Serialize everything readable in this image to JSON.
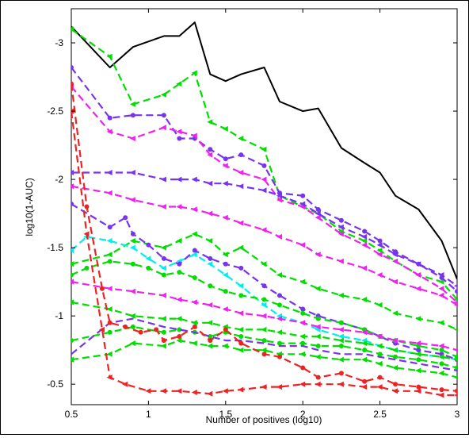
{
  "chart_data": {
    "type": "line",
    "title": "",
    "xlabel": "Number of positives (log10)",
    "ylabel": "log10(1-AUC)",
    "xlim": [
      0.5,
      3
    ],
    "ylim": [
      -3.25,
      -0.35
    ],
    "y_reversed": true,
    "x_ticks": [
      0.5,
      1,
      1.5,
      2,
      2.5,
      3
    ],
    "x_tick_labels": [
      "0.5",
      "1",
      "1.5",
      "2",
      "2.5",
      "3"
    ],
    "y_ticks": [
      -3,
      -2.5,
      -2,
      -1.5,
      -1,
      -0.5
    ],
    "y_tick_labels": [
      "-3",
      "-2.5",
      "-2",
      "-1.5",
      "-1",
      "-0.5"
    ],
    "grid": false,
    "legend": "none",
    "series": [
      {
        "color": "#000000",
        "style": "solid",
        "marker": "none",
        "x": [
          0.5,
          0.75,
          0.9,
          1.1,
          1.2,
          1.3,
          1.4,
          1.5,
          1.6,
          1.75,
          1.85,
          2.0,
          2.1,
          2.25,
          2.4,
          2.5,
          2.6,
          2.75,
          2.9,
          3.0
        ],
        "y": [
          -3.12,
          -2.82,
          -2.97,
          -3.05,
          -3.05,
          -3.15,
          -2.77,
          -2.72,
          -2.77,
          -2.82,
          -2.57,
          -2.5,
          -2.52,
          -2.23,
          -2.12,
          -2.05,
          -1.88,
          -1.78,
          -1.55,
          -1.27
        ]
      },
      {
        "color": "#00dd00",
        "style": "dashed",
        "marker": "triangle",
        "x": [
          0.5,
          0.75,
          0.9,
          1.1,
          1.2,
          1.3,
          1.4,
          1.5,
          1.6,
          1.75,
          1.85,
          2.0,
          2.1,
          2.25,
          2.4,
          2.5,
          2.6,
          2.75,
          2.9,
          3.0
        ],
        "y": [
          -3.1,
          -2.9,
          -2.55,
          -2.62,
          -2.7,
          -2.78,
          -2.42,
          -2.37,
          -2.3,
          -2.22,
          -1.88,
          -1.8,
          -1.75,
          -1.62,
          -1.55,
          -1.48,
          -1.4,
          -1.3,
          -1.25,
          -1.12
        ]
      },
      {
        "color": "#7733ee",
        "style": "dashed",
        "marker": "circle",
        "x": [
          0.5,
          0.75,
          0.9,
          1.1,
          1.2,
          1.3,
          1.4,
          1.5,
          1.6,
          1.75,
          1.85,
          2.0,
          2.1,
          2.25,
          2.4,
          2.5,
          2.6,
          2.75,
          2.9,
          3.0
        ],
        "y": [
          -2.82,
          -2.45,
          -2.47,
          -2.47,
          -2.3,
          -2.3,
          -2.22,
          -2.15,
          -2.18,
          -2.1,
          -1.9,
          -1.88,
          -1.78,
          -1.7,
          -1.62,
          -1.55,
          -1.47,
          -1.38,
          -1.28,
          -1.18
        ]
      },
      {
        "color": "#ee22ee",
        "style": "dashed",
        "marker": "triangle",
        "x": [
          0.5,
          0.75,
          0.9,
          1.1,
          1.2,
          1.3,
          1.4,
          1.5,
          1.6,
          1.75,
          1.85,
          2.0,
          2.1,
          2.25,
          2.4,
          2.5,
          2.6,
          2.75,
          2.9,
          3.0
        ],
        "y": [
          -2.68,
          -2.35,
          -2.3,
          -2.38,
          -2.35,
          -2.32,
          -2.18,
          -2.1,
          -2.05,
          -2.0,
          -1.85,
          -1.8,
          -1.72,
          -1.6,
          -1.52,
          -1.45,
          -1.4,
          -1.3,
          -1.2,
          -1.1
        ]
      },
      {
        "color": "#7733ee",
        "style": "dashed",
        "marker": "triangle",
        "x": [
          0.5,
          0.75,
          0.9,
          1.1,
          1.2,
          1.3,
          1.4,
          1.5,
          1.6,
          1.75,
          1.85,
          2.0,
          2.1,
          2.25,
          2.4,
          2.5,
          2.6,
          2.75,
          2.9,
          3.0
        ],
        "y": [
          -2.05,
          -2.05,
          -2.05,
          -2.0,
          -2.0,
          -2.0,
          -1.97,
          -1.97,
          -1.95,
          -1.92,
          -1.88,
          -1.82,
          -1.75,
          -1.65,
          -1.58,
          -1.52,
          -1.45,
          -1.38,
          -1.3,
          -1.22
        ]
      },
      {
        "color": "#ee22ee",
        "style": "dashed",
        "marker": "triangle",
        "x": [
          0.5,
          0.75,
          0.9,
          1.1,
          1.2,
          1.3,
          1.4,
          1.5,
          1.6,
          1.75,
          1.85,
          2.0,
          2.1,
          2.25,
          2.4,
          2.5,
          2.6,
          2.75,
          2.9,
          3.0
        ],
        "y": [
          -1.95,
          -1.9,
          -1.85,
          -1.8,
          -1.8,
          -1.78,
          -1.75,
          -1.72,
          -1.68,
          -1.63,
          -1.58,
          -1.52,
          -1.45,
          -1.4,
          -1.35,
          -1.3,
          -1.25,
          -1.2,
          -1.15,
          -1.08
        ]
      },
      {
        "color": "#00dd00",
        "style": "dashed",
        "marker": "triangle",
        "x": [
          0.5,
          0.75,
          0.9,
          1.1,
          1.2,
          1.3,
          1.4,
          1.5,
          1.6,
          1.75,
          1.85,
          2.0,
          2.1,
          2.25,
          2.4,
          2.5,
          2.6,
          2.75,
          2.9,
          3.0
        ],
        "y": [
          -1.38,
          -1.45,
          -1.55,
          -1.5,
          -1.55,
          -1.6,
          -1.55,
          -1.45,
          -1.5,
          -1.38,
          -1.3,
          -1.25,
          -1.2,
          -1.15,
          -1.12,
          -1.08,
          -1.02,
          -0.98,
          -0.95,
          -0.9
        ]
      },
      {
        "color": "#00eeee",
        "style": "dashed",
        "marker": "triangle",
        "x": [
          0.5,
          0.6,
          0.75,
          0.9,
          1.0,
          1.1,
          1.2,
          1.3,
          1.4,
          1.5,
          1.6,
          1.75,
          1.85,
          2.0,
          2.1,
          2.25,
          2.4,
          2.5,
          2.6,
          2.75,
          2.9,
          3.0
        ],
        "y": [
          -1.48,
          -1.58,
          -1.55,
          -1.5,
          -1.42,
          -1.35,
          -1.4,
          -1.45,
          -1.38,
          -1.3,
          -1.22,
          -1.08,
          -1.0,
          -0.95,
          -0.9,
          -0.85,
          -0.82,
          -0.78,
          -0.75,
          -0.72,
          -0.7,
          -0.68
        ]
      },
      {
        "color": "#7733ee",
        "style": "dashed",
        "marker": "circle",
        "x": [
          0.5,
          0.75,
          0.85,
          0.9,
          1.0,
          1.1,
          1.2,
          1.3,
          1.4,
          1.5,
          1.6,
          1.75,
          1.85,
          2.0,
          2.1,
          2.25,
          2.4,
          2.5,
          2.6,
          2.75,
          2.9,
          3.0
        ],
        "y": [
          -1.82,
          -1.65,
          -1.72,
          -1.6,
          -1.52,
          -1.42,
          -1.38,
          -1.48,
          -1.42,
          -1.38,
          -1.35,
          -1.22,
          -1.15,
          -1.05,
          -1.0,
          -0.95,
          -0.9,
          -0.85,
          -0.8,
          -0.75,
          -0.72,
          -0.68
        ]
      },
      {
        "color": "#00dd00",
        "style": "dashed",
        "marker": "circle",
        "x": [
          0.5,
          0.6,
          0.75,
          0.9,
          1.0,
          1.1,
          1.2,
          1.3,
          1.4,
          1.5,
          1.6,
          1.75,
          1.85,
          2.0,
          2.1,
          2.25,
          2.4,
          2.5,
          2.6,
          2.75,
          2.9,
          3.0
        ],
        "y": [
          -1.3,
          -1.35,
          -1.4,
          -1.38,
          -1.35,
          -1.3,
          -1.32,
          -1.28,
          -1.22,
          -1.18,
          -1.15,
          -1.12,
          -1.08,
          -1.02,
          -0.98,
          -0.95,
          -0.9,
          -0.85,
          -0.82,
          -0.78,
          -0.75,
          -0.7
        ]
      },
      {
        "color": "#ee22ee",
        "style": "dashed",
        "marker": "triangle",
        "x": [
          0.5,
          0.75,
          0.9,
          1.1,
          1.2,
          1.3,
          1.4,
          1.5,
          1.6,
          1.75,
          1.85,
          2.0,
          2.1,
          2.25,
          2.4,
          2.5,
          2.6,
          2.75,
          2.9,
          3.0
        ],
        "y": [
          -1.25,
          -1.2,
          -1.18,
          -1.15,
          -1.12,
          -1.1,
          -1.08,
          -1.05,
          -1.02,
          -1.0,
          -0.98,
          -0.95,
          -0.92,
          -0.9,
          -0.88,
          -0.85,
          -0.82,
          -0.8,
          -0.78,
          -0.75
        ]
      },
      {
        "color": "#00dd00",
        "style": "dashed",
        "marker": "triangle",
        "x": [
          0.5,
          0.75,
          0.9,
          1.1,
          1.2,
          1.3,
          1.4,
          1.5,
          1.6,
          1.75,
          1.85,
          2.0,
          2.1,
          2.25,
          2.4,
          2.5,
          2.6,
          2.75,
          2.9,
          3.0
        ],
        "y": [
          -1.1,
          -1.05,
          -1.0,
          -0.98,
          -0.98,
          -0.95,
          -0.95,
          -0.92,
          -0.9,
          -0.9,
          -0.88,
          -0.85,
          -0.85,
          -0.82,
          -0.8,
          -0.78,
          -0.75,
          -0.72,
          -0.7,
          -0.68
        ]
      },
      {
        "color": "#00dd00",
        "style": "dashed",
        "marker": "circle",
        "x": [
          0.5,
          0.75,
          0.9,
          1.1,
          1.2,
          1.3,
          1.4,
          1.5,
          1.6,
          1.75,
          1.85,
          2.0,
          2.1,
          2.25,
          2.4,
          2.5,
          2.6,
          2.75,
          2.9,
          3.0
        ],
        "y": [
          -0.82,
          -0.88,
          -0.92,
          -0.88,
          -0.9,
          -0.88,
          -0.85,
          -0.88,
          -0.85,
          -0.82,
          -0.8,
          -0.8,
          -0.78,
          -0.78,
          -0.75,
          -0.72,
          -0.7,
          -0.68,
          -0.65,
          -0.62
        ]
      },
      {
        "color": "#00dd00",
        "style": "dashed",
        "marker": "triangle",
        "x": [
          0.5,
          0.75,
          0.9,
          1.1,
          1.2,
          1.3,
          1.4,
          1.5,
          1.6,
          1.75,
          1.85,
          2.0,
          2.1,
          2.25,
          2.4,
          2.5,
          2.6,
          2.75,
          2.9,
          3.0
        ],
        "y": [
          -0.68,
          -0.72,
          -0.8,
          -0.78,
          -0.82,
          -0.8,
          -0.78,
          -0.78,
          -0.75,
          -0.75,
          -0.72,
          -0.72,
          -0.7,
          -0.68,
          -0.68,
          -0.65,
          -0.62,
          -0.6,
          -0.58,
          -0.55
        ]
      },
      {
        "color": "#7733ee",
        "style": "dashed",
        "marker": "none",
        "x": [
          0.5,
          0.75,
          0.9,
          1.1,
          1.2,
          1.3,
          1.4,
          1.5,
          1.6,
          1.75,
          1.85,
          2.0,
          2.1,
          2.25,
          2.4,
          2.5,
          2.6,
          2.75,
          2.9,
          3.0
        ],
        "y": [
          -0.72,
          -0.95,
          -0.98,
          -0.92,
          -0.9,
          -0.88,
          -0.85,
          -0.82,
          -0.82,
          -0.8,
          -0.78,
          -0.78,
          -0.75,
          -0.72,
          -0.72,
          -0.7,
          -0.68,
          -0.65,
          -0.62,
          -0.6
        ]
      },
      {
        "color": "#ee2222",
        "style": "dashed",
        "marker": "circle",
        "x": [
          0.5,
          0.6,
          0.7,
          0.75,
          0.85,
          0.95,
          1.05,
          1.1,
          1.2,
          1.3,
          1.4,
          1.5,
          1.6,
          1.75,
          1.85,
          2.0,
          2.1,
          2.25,
          2.4,
          2.5,
          2.6,
          2.75,
          2.9,
          3.0
        ],
        "y": [
          -2.7,
          -1.8,
          -1.2,
          -0.95,
          -0.92,
          -0.88,
          -0.9,
          -0.82,
          -0.85,
          -0.92,
          -0.82,
          -0.9,
          -0.8,
          -0.72,
          -0.7,
          -0.62,
          -0.55,
          -0.58,
          -0.52,
          -0.55,
          -0.5,
          -0.48,
          -0.46,
          -0.45
        ]
      },
      {
        "color": "#ee2222",
        "style": "dashed",
        "marker": "triangle",
        "x": [
          0.5,
          0.6,
          0.7,
          0.75,
          0.85,
          1.0,
          1.1,
          1.2,
          1.3,
          1.4,
          1.5,
          1.6,
          1.75,
          1.85,
          2.0,
          2.1,
          2.25,
          2.4,
          2.5,
          2.6,
          2.75,
          2.9,
          3.0
        ],
        "y": [
          -2.5,
          -1.6,
          -0.9,
          -0.55,
          -0.5,
          -0.45,
          -0.45,
          -0.45,
          -0.44,
          -0.43,
          -0.45,
          -0.46,
          -0.48,
          -0.48,
          -0.5,
          -0.5,
          -0.5,
          -0.48,
          -0.48,
          -0.45,
          -0.45,
          -0.42,
          -0.42
        ]
      }
    ]
  }
}
